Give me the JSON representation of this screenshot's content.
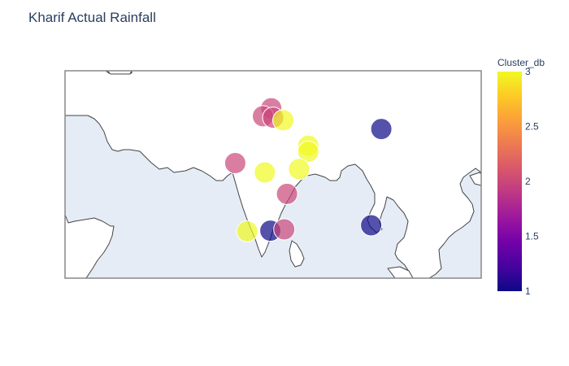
{
  "title": "Kharif Actual Rainfall",
  "colors": {
    "land": "#ffffff",
    "ocean": "#e5ecf6",
    "coast": "#444444",
    "frame": "#888888",
    "scale": [
      "#0d0887",
      "#46039f",
      "#7201a8",
      "#9c179e",
      "#bd3786",
      "#d8576b",
      "#ed7953",
      "#fb9f3a",
      "#fdca26",
      "#f0f921"
    ]
  },
  "chart_data": {
    "type": "scatter",
    "map": "scatter-geo",
    "region": "South Asia",
    "lon_range": [
      60,
      105
    ],
    "lat_range": [
      5,
      36
    ],
    "color_variable": "Cluster_db",
    "color_range": [
      1,
      3
    ],
    "marker_opacity": 0.7,
    "points": [
      {
        "lon": 82.3,
        "lat": 30.4,
        "cluster": 2
      },
      {
        "lon": 81.4,
        "lat": 29.2,
        "cluster": 2
      },
      {
        "lon": 82.5,
        "lat": 29.0,
        "cluster": 2
      },
      {
        "lon": 83.6,
        "lat": 28.6,
        "cluster": 3
      },
      {
        "lon": 94.2,
        "lat": 27.3,
        "cluster": 1
      },
      {
        "lon": 86.3,
        "lat": 24.8,
        "cluster": 3
      },
      {
        "lon": 86.3,
        "lat": 23.9,
        "cluster": 3
      },
      {
        "lon": 78.4,
        "lat": 22.2,
        "cluster": 2
      },
      {
        "lon": 81.6,
        "lat": 20.8,
        "cluster": 3
      },
      {
        "lon": 85.3,
        "lat": 21.3,
        "cluster": 3
      },
      {
        "lon": 84.0,
        "lat": 17.6,
        "cluster": 2
      },
      {
        "lon": 79.7,
        "lat": 12.0,
        "cluster": 3
      },
      {
        "lon": 82.2,
        "lat": 12.1,
        "cluster": 1
      },
      {
        "lon": 83.7,
        "lat": 12.3,
        "cluster": 2
      },
      {
        "lon": 93.1,
        "lat": 12.9,
        "cluster": 1
      }
    ]
  },
  "colorbar": {
    "title": "Cluster_db",
    "ticks": [
      "1",
      "1.5",
      "2",
      "2.5",
      "3"
    ]
  }
}
